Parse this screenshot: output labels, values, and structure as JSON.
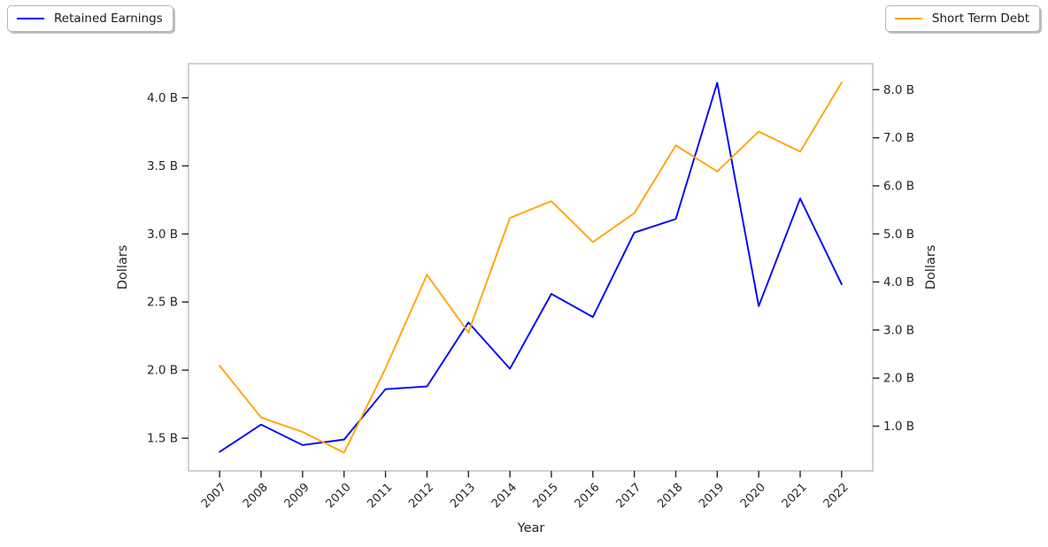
{
  "legends": {
    "left": {
      "label": "Retained Earnings",
      "color": "#0000ff"
    },
    "right": {
      "label": "Short Term Debt",
      "color": "#ffa500"
    }
  },
  "chart_data": {
    "type": "line",
    "title": "",
    "xlabel": "Year",
    "x_categories": [
      "2007",
      "2008",
      "2009",
      "2010",
      "2011",
      "2012",
      "2013",
      "2014",
      "2015",
      "2016",
      "2017",
      "2018",
      "2019",
      "2020",
      "2021",
      "2022"
    ],
    "left_axis": {
      "label": "Dollars",
      "tick_values": [
        1.5,
        2.0,
        2.5,
        3.0,
        3.5,
        4.0
      ],
      "tick_labels": [
        "1.5 B",
        "2.0 B",
        "2.5 B",
        "3.0 B",
        "3.5 B",
        "4.0 B"
      ],
      "ylim": [
        1.26,
        4.25
      ]
    },
    "right_axis": {
      "label": "Dollars",
      "tick_values": [
        1.0,
        2.0,
        3.0,
        4.0,
        5.0,
        6.0,
        7.0,
        8.0
      ],
      "tick_labels": [
        "1.0 B",
        "2.0 B",
        "3.0 B",
        "4.0 B",
        "5.0 B",
        "6.0 B",
        "7.0 B",
        "8.0 B"
      ],
      "ylim": [
        0.07,
        8.54
      ]
    },
    "series": [
      {
        "name": "Retained Earnings",
        "axis": "left",
        "color": "#0000ff",
        "unit": "B",
        "values": [
          1.4,
          1.6,
          1.45,
          1.49,
          1.86,
          1.88,
          2.35,
          2.01,
          2.56,
          2.39,
          3.01,
          3.11,
          4.11,
          2.47,
          3.26,
          2.63
        ]
      },
      {
        "name": "Short Term Debt",
        "axis": "right",
        "color": "#ffa500",
        "unit": "B",
        "values": [
          2.26,
          1.18,
          0.88,
          0.45,
          2.2,
          4.15,
          2.95,
          5.33,
          5.68,
          4.83,
          5.43,
          6.84,
          6.3,
          7.13,
          6.71,
          8.15
        ]
      }
    ],
    "legend_positions": [
      "upper left",
      "upper right"
    ],
    "grid": false
  },
  "colors": {
    "spine": "#cbcbcb",
    "tick": "#262626",
    "text": "#262626",
    "background": "#ffffff"
  }
}
